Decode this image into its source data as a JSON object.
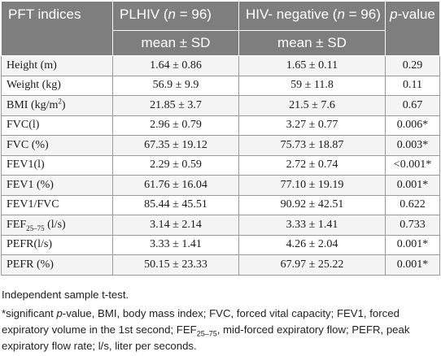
{
  "header": {
    "col1": "PFT indices",
    "col2_pre": "PLHIV (",
    "col2_n": "n",
    "col2_post": " = 96)",
    "col3_pre": "HIV- negative (",
    "col3_n": "n",
    "col3_post": " = 96)",
    "col4_p": "p",
    "col4_rest": "-value",
    "sub2": "mean ± SD",
    "sub3": "mean ± SD"
  },
  "rows": [
    {
      "label": "Height (m)",
      "plhiv": "1.64 ± 0.86",
      "neg": "1.65 ± 0.11",
      "p": "0.29"
    },
    {
      "label": "Weight (kg)",
      "plhiv": "56.9 ± 9.9",
      "neg": "59 ± 11.8",
      "p": "0.11"
    },
    {
      "label_pre": "BMI (kg/m",
      "label_sup": "2",
      "label_post": ")",
      "plhiv": "21.85 ± 3.7",
      "neg": "21.5 ± 7.6",
      "p": "0.67"
    },
    {
      "label": "FVC(l)",
      "plhiv": "2.96 ± 0.79",
      "neg": "3.27 ± 0.77",
      "p": "0.006*"
    },
    {
      "label": "FVC (%)",
      "plhiv": "67.35 ± 19.12",
      "neg": "75.73 ± 18.87",
      "p": "0.003*"
    },
    {
      "label": "FEV1(l)",
      "plhiv": "2.29 ± 0.59",
      "neg": "2.72 ± 0.74",
      "p": "<0.001*"
    },
    {
      "label": "FEV1 (%)",
      "plhiv": "61.76 ± 16.04",
      "neg": "77.10 ± 19.19",
      "p": "0.001*"
    },
    {
      "label": "FEV1/FVC",
      "plhiv": "85.44 ± 45.51",
      "neg": "90.92 ± 42.51",
      "p": "0.622"
    },
    {
      "label_pre": "FEF",
      "label_sub": "25–75",
      "label_post": " (l/s)",
      "plhiv": "3.14 ± 2.14",
      "neg": "3.33 ± 1.41",
      "p": "0.733"
    },
    {
      "label": "PEFR(l/s)",
      "plhiv": "3.33 ± 1.41",
      "neg": "4.26 ± 2.04",
      "p": "0.001*"
    },
    {
      "label": "PEFR (%)",
      "plhiv": "50.15 ± 23.33",
      "neg": "67.97 ± 25.22",
      "p": "0.001*"
    }
  ],
  "notes": {
    "line1": "Independent sample t-test.",
    "n2_a": "*significant ",
    "n2_p": "p",
    "n2_b": "-value, BMI, body mass index; FVC, forced vital capacity; FEV1, forced expiratory volume in the 1st second; FEF",
    "n2_sub": "25–75",
    "n2_c": ", mid-forced expiratory flow; PEFR, peak expiratory flow rate; l/s, liter per seconds."
  }
}
